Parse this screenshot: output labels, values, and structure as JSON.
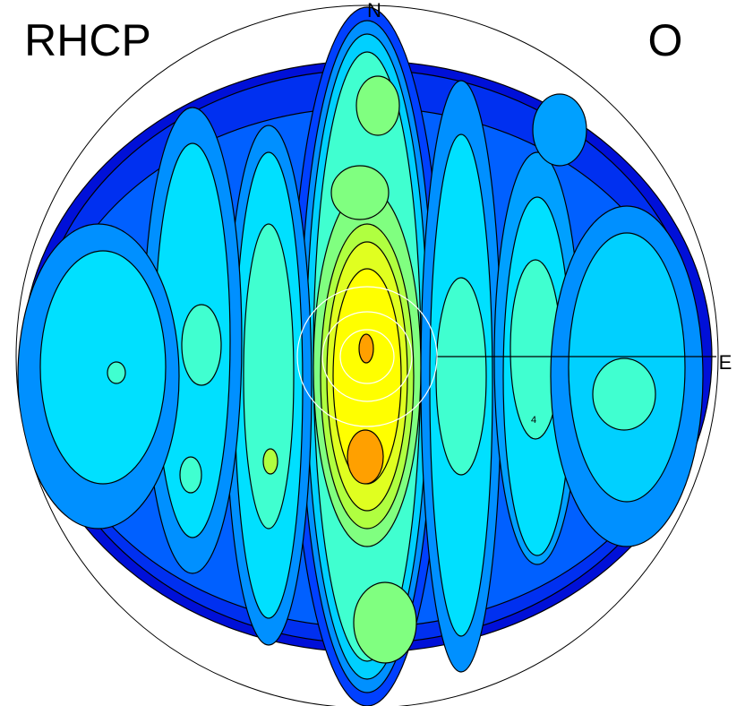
{
  "chart_data": {
    "type": "contour",
    "title": "RHCP",
    "corner_label": "O",
    "north_label": "N",
    "east_label": "E",
    "contour_label": "4"
  }
}
